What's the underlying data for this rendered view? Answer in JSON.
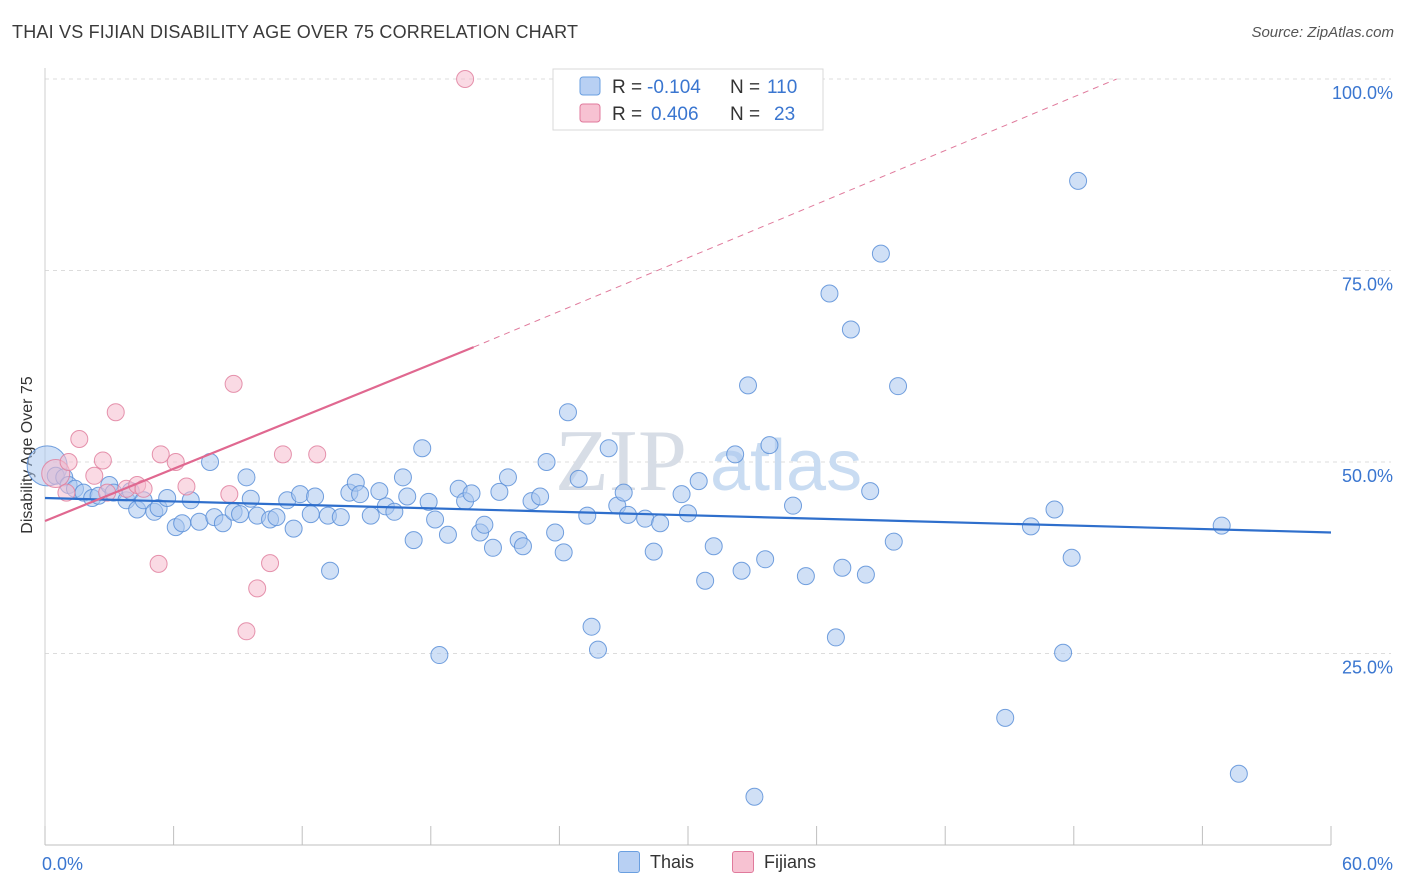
{
  "title": "THAI VS FIJIAN DISABILITY AGE OVER 75 CORRELATION CHART",
  "source": "Source: ZipAtlas.com",
  "watermark": {
    "zip": "ZIP",
    "atlas": "atlas"
  },
  "legend": {
    "rows": [
      {
        "r_label": "R = ",
        "r_value": "-0.104",
        "n_label": "N = ",
        "n_value": "110",
        "color": "#6a9fe0",
        "fill": "#b8d0f3"
      },
      {
        "r_label": "R = ",
        "r_value": "0.406",
        "n_label": "N = ",
        "n_value": "23",
        "color": "#e07a9c",
        "fill": "#f7c2d2"
      }
    ]
  },
  "chart_data": {
    "type": "scatter",
    "title": "THAI VS FIJIAN DISABILITY AGE OVER 75 CORRELATION CHART",
    "ylabel": "Disability Age Over 75",
    "xlim": [
      0,
      60
    ],
    "ylim": [
      0,
      100
    ],
    "x_ticks": [
      {
        "value": 0,
        "label": "0.0%"
      },
      {
        "value": 60,
        "label": "60.0%"
      }
    ],
    "y_ticks": [
      {
        "value": 25,
        "label": "25.0%"
      },
      {
        "value": 50,
        "label": "50.0%"
      },
      {
        "value": 75,
        "label": "75.0%"
      },
      {
        "value": 100,
        "label": "100.0%"
      }
    ],
    "legend_position": "bottom-center",
    "grid": true,
    "series": [
      {
        "name": "Thais",
        "color": "#5b8fd8",
        "fill": "#a9c6ef",
        "trend": {
          "x0": 0,
          "y0": 45.3,
          "x1": 60,
          "y1": 40.8
        },
        "points": [
          [
            0.1,
            49.5
          ],
          [
            0.5,
            48.2
          ],
          [
            0.9,
            48
          ],
          [
            1.1,
            47
          ],
          [
            1.4,
            46.5
          ],
          [
            1.8,
            46
          ],
          [
            2.2,
            45.3
          ],
          [
            2.5,
            45.6
          ],
          [
            3,
            47
          ],
          [
            3.2,
            46
          ],
          [
            3.8,
            45
          ],
          [
            4,
            46.2
          ],
          [
            4.3,
            43.8
          ],
          [
            4.6,
            45
          ],
          [
            5.1,
            43.5
          ],
          [
            5.3,
            44
          ],
          [
            5.7,
            45.3
          ],
          [
            6.1,
            41.5
          ],
          [
            6.4,
            42
          ],
          [
            6.8,
            45
          ],
          [
            7.2,
            42.2
          ],
          [
            7.7,
            50
          ],
          [
            7.9,
            42.8
          ],
          [
            8.3,
            42
          ],
          [
            8.8,
            43.5
          ],
          [
            9.1,
            43.2
          ],
          [
            9.4,
            48
          ],
          [
            9.6,
            45.2
          ],
          [
            9.9,
            43
          ],
          [
            10.5,
            42.5
          ],
          [
            10.8,
            42.8
          ],
          [
            11.3,
            45
          ],
          [
            11.6,
            41.3
          ],
          [
            11.9,
            45.8
          ],
          [
            12.4,
            43.2
          ],
          [
            12.6,
            45.5
          ],
          [
            13.2,
            43
          ],
          [
            13.3,
            35.8
          ],
          [
            13.8,
            42.8
          ],
          [
            14.2,
            46
          ],
          [
            14.5,
            47.3
          ],
          [
            14.7,
            45.8
          ],
          [
            15.2,
            43
          ],
          [
            15.6,
            46.2
          ],
          [
            15.9,
            44.2
          ],
          [
            16.3,
            43.5
          ],
          [
            16.7,
            48
          ],
          [
            16.9,
            45.5
          ],
          [
            17.2,
            39.8
          ],
          [
            17.6,
            51.8
          ],
          [
            17.9,
            44.8
          ],
          [
            18.2,
            42.5
          ],
          [
            18.4,
            24.8
          ],
          [
            18.8,
            40.5
          ],
          [
            19.3,
            46.5
          ],
          [
            19.6,
            44.9
          ],
          [
            19.9,
            45.9
          ],
          [
            20.3,
            40.8
          ],
          [
            20.5,
            41.8
          ],
          [
            20.9,
            38.8
          ],
          [
            21.2,
            46.1
          ],
          [
            21.6,
            48
          ],
          [
            22.1,
            39.8
          ],
          [
            22.3,
            39
          ],
          [
            22.7,
            44.9
          ],
          [
            23.1,
            45.5
          ],
          [
            23.4,
            50
          ],
          [
            23.8,
            40.8
          ],
          [
            24.2,
            38.2
          ],
          [
            24.4,
            56.5
          ],
          [
            24.9,
            47.8
          ],
          [
            25.3,
            43
          ],
          [
            25.5,
            28.5
          ],
          [
            25.8,
            25.5
          ],
          [
            26.3,
            51.8
          ],
          [
            26.7,
            44.3
          ],
          [
            27,
            46
          ],
          [
            27.2,
            43.1
          ],
          [
            28,
            42.6
          ],
          [
            28.4,
            38.3
          ],
          [
            28.7,
            42
          ],
          [
            29.7,
            45.8
          ],
          [
            30,
            43.3
          ],
          [
            30.5,
            47.5
          ],
          [
            30.8,
            34.5
          ],
          [
            31.2,
            39
          ],
          [
            32.2,
            51
          ],
          [
            32.5,
            35.8
          ],
          [
            32.8,
            60
          ],
          [
            33.1,
            6.3
          ],
          [
            33.6,
            37.3
          ],
          [
            33.8,
            52.2
          ],
          [
            34.9,
            44.3
          ],
          [
            35.5,
            35.1
          ],
          [
            36.6,
            72
          ],
          [
            36.9,
            27.1
          ],
          [
            37.2,
            36.2
          ],
          [
            37.6,
            67.3
          ],
          [
            38.3,
            35.3
          ],
          [
            38.5,
            46.2
          ],
          [
            39,
            77.2
          ],
          [
            39.6,
            39.6
          ],
          [
            39.8,
            59.9
          ],
          [
            44.8,
            16.6
          ],
          [
            46,
            41.6
          ],
          [
            47.1,
            43.8
          ],
          [
            47.5,
            25.1
          ],
          [
            47.9,
            37.5
          ],
          [
            48.2,
            86.7
          ],
          [
            54.9,
            41.7
          ],
          [
            55.7,
            9.3
          ]
        ]
      },
      {
        "name": "Fijians",
        "color": "#e0809f",
        "fill": "#f5bccd",
        "trend": {
          "x0": 0,
          "y0": 42.3,
          "x1": 20,
          "y1": 65
        },
        "trend_extended": {
          "x0": 20,
          "y0": 65,
          "x1": 50,
          "y1": 100
        },
        "points": [
          [
            0.5,
            48.5
          ],
          [
            1,
            46
          ],
          [
            1.1,
            50
          ],
          [
            1.6,
            53
          ],
          [
            2.3,
            48.2
          ],
          [
            2.7,
            50.2
          ],
          [
            2.9,
            46
          ],
          [
            3.3,
            56.5
          ],
          [
            3.8,
            46.5
          ],
          [
            4.3,
            47
          ],
          [
            4.6,
            46.5
          ],
          [
            5.3,
            36.7
          ],
          [
            5.4,
            51
          ],
          [
            6.1,
            50
          ],
          [
            6.6,
            46.8
          ],
          [
            8.6,
            45.8
          ],
          [
            8.8,
            60.2
          ],
          [
            9.4,
            27.9
          ],
          [
            9.9,
            33.5
          ],
          [
            10.5,
            36.8
          ],
          [
            11.1,
            51
          ],
          [
            12.7,
            51
          ],
          [
            19.6,
            100
          ]
        ]
      }
    ]
  }
}
